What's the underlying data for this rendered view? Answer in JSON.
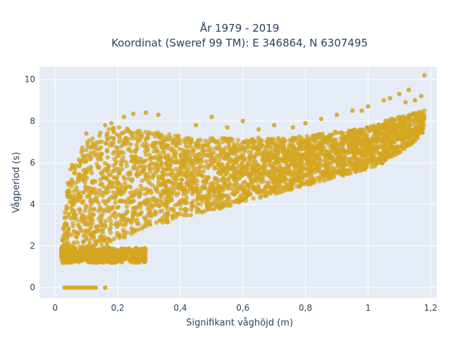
{
  "chart_data": {
    "type": "scatter",
    "title_lines": [
      "År 1979 - 2019",
      "Koordinat (Sweref 99 TM): E 346864, N 6307495"
    ],
    "xlabel": "Signifikant våghöjd (m)",
    "ylabel": "Vågperiod (s)",
    "xlim": [
      -0.05,
      1.22
    ],
    "ylim": [
      -0.5,
      10.6
    ],
    "x_ticks": [
      0,
      0.2,
      0.4,
      0.6,
      0.8,
      1,
      1.2
    ],
    "x_tick_labels": [
      "0",
      "0,2",
      "0,4",
      "0,6",
      "0,8",
      "1",
      "1,2"
    ],
    "y_ticks": [
      0,
      2,
      4,
      6,
      8,
      10
    ],
    "y_tick_labels": [
      "0",
      "2",
      "4",
      "6",
      "8",
      "10"
    ],
    "grid": true,
    "colors": {
      "marker": "#d4a520",
      "plot_bg": "#e5ecf6",
      "grid": "#ffffff"
    },
    "series": [
      {
        "envelope": [
          [
            0.02,
            1.2,
            1.8
          ],
          [
            0.03,
            1.15,
            3.5
          ],
          [
            0.04,
            1.15,
            5.0
          ],
          [
            0.05,
            1.2,
            5.8
          ],
          [
            0.06,
            1.2,
            6.3
          ],
          [
            0.08,
            1.2,
            6.6
          ],
          [
            0.1,
            1.2,
            7.0
          ],
          [
            0.12,
            1.3,
            7.2
          ],
          [
            0.15,
            1.6,
            7.5
          ],
          [
            0.17,
            1.9,
            7.6
          ],
          [
            0.19,
            2.1,
            7.7
          ],
          [
            0.2,
            2.2,
            7.8
          ],
          [
            0.25,
            2.6,
            7.6
          ],
          [
            0.3,
            2.9,
            7.5
          ],
          [
            0.35,
            3.1,
            7.4
          ],
          [
            0.4,
            3.3,
            7.3
          ],
          [
            0.45,
            3.5,
            7.2
          ],
          [
            0.5,
            3.7,
            7.2
          ],
          [
            0.55,
            3.9,
            7.2
          ],
          [
            0.6,
            4.1,
            7.1
          ],
          [
            0.65,
            4.3,
            7.2
          ],
          [
            0.7,
            4.5,
            7.2
          ],
          [
            0.75,
            4.7,
            7.2
          ],
          [
            0.8,
            4.9,
            7.3
          ],
          [
            0.85,
            5.1,
            7.4
          ],
          [
            0.9,
            5.3,
            7.5
          ],
          [
            0.95,
            5.5,
            7.6
          ],
          [
            1.0,
            5.7,
            7.7
          ],
          [
            1.05,
            6.0,
            8.0
          ],
          [
            1.1,
            6.5,
            8.2
          ],
          [
            1.15,
            7.0,
            8.4
          ],
          [
            1.18,
            7.5,
            8.5
          ]
        ],
        "low_band": [
          [
            0.02,
            1.2,
            1.9
          ],
          [
            0.29,
            1.2,
            1.9
          ]
        ],
        "zero_points": [
          0.03,
          0.04,
          0.05,
          0.06,
          0.07,
          0.08,
          0.09,
          0.1,
          0.11,
          0.12,
          0.13,
          0.16
        ],
        "outliers": [
          [
            1.18,
            10.2
          ],
          [
            1.13,
            9.5
          ],
          [
            1.1,
            9.3
          ],
          [
            1.05,
            9.0
          ],
          [
            1.0,
            8.7
          ],
          [
            0.95,
            8.5
          ],
          [
            0.9,
            8.3
          ],
          [
            0.85,
            8.1
          ],
          [
            0.8,
            7.9
          ],
          [
            0.7,
            7.8
          ],
          [
            0.6,
            8.0
          ],
          [
            0.5,
            8.2
          ],
          [
            0.33,
            8.3
          ],
          [
            0.29,
            8.4
          ],
          [
            0.25,
            8.35
          ],
          [
            0.22,
            8.2
          ],
          [
            0.18,
            7.9
          ],
          [
            0.16,
            7.8
          ],
          [
            0.1,
            7.4
          ],
          [
            0.45,
            7.8
          ],
          [
            0.55,
            7.7
          ],
          [
            0.65,
            7.6
          ],
          [
            0.76,
            7.7
          ],
          [
            0.98,
            8.5
          ],
          [
            1.07,
            9.1
          ],
          [
            1.12,
            8.9
          ],
          [
            1.15,
            9.0
          ],
          [
            1.17,
            9.2
          ],
          [
            0.04,
            2.6
          ],
          [
            0.09,
            2.2
          ]
        ]
      }
    ]
  }
}
